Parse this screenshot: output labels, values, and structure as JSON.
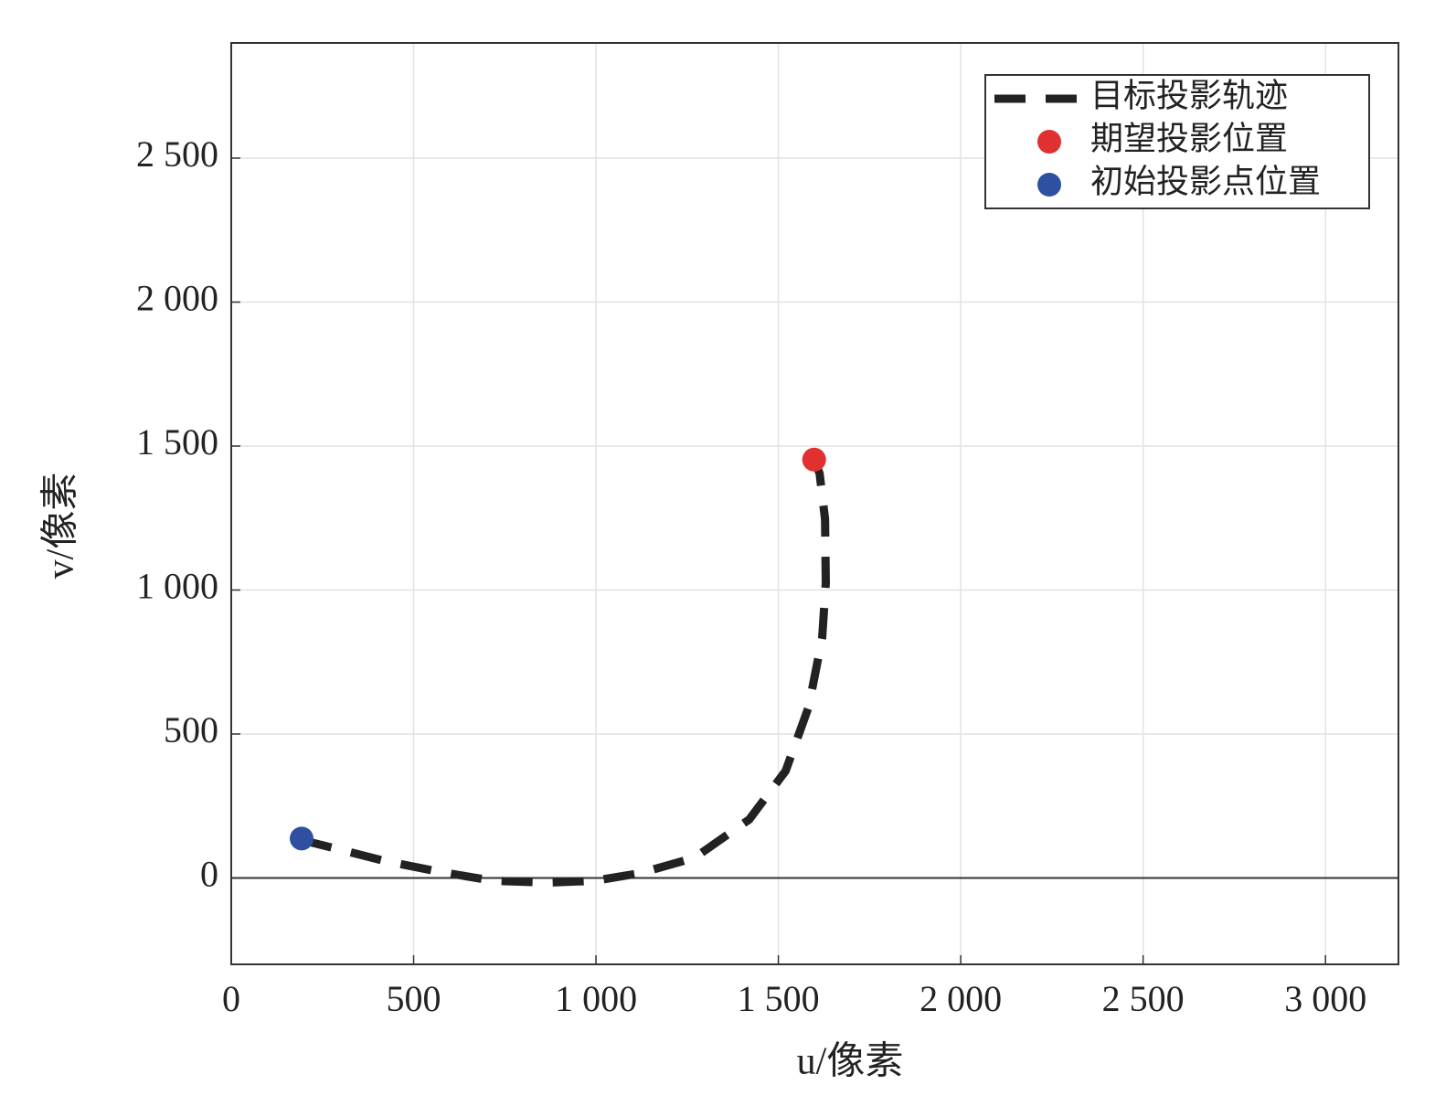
{
  "chart_data": {
    "type": "line",
    "xlabel": "u/像素",
    "ylabel": "v/像素",
    "xlim": [
      0,
      3200
    ],
    "ylim": [
      -300,
      2900
    ],
    "xticks": [
      0,
      500,
      {
        "value": 1000,
        "label": "1 000"
      },
      {
        "value": 1500,
        "label": "1 500"
      },
      {
        "value": 2000,
        "label": "2 000"
      },
      {
        "value": 2500,
        "label": "2 500"
      },
      {
        "value": 3000,
        "label": "3 000"
      }
    ],
    "yticks": [
      0,
      500,
      {
        "value": 1000,
        "label": "1 000"
      },
      {
        "value": 1500,
        "label": "1 500"
      },
      {
        "value": 2000,
        "label": "2 000"
      },
      {
        "value": 2500,
        "label": "2 500"
      }
    ],
    "grid": true,
    "zero_line": true,
    "legend": "upper right",
    "series": [
      {
        "name": "目标投影轨迹",
        "color": "#222222",
        "style": "dashed",
        "x": [
          193,
          218,
          418,
          569,
          719,
          869,
          994,
          1119,
          1270,
          1420,
          1520,
          1583,
          1620,
          1630,
          1628,
          1613,
          1598
        ],
        "values": [
          137,
          124,
          60,
          22,
          -10,
          -16,
          -10,
          16,
          70,
          203,
          372,
          594,
          833,
          1024,
          1246,
          1405,
          1453
        ]
      },
      {
        "name": "期望投影位置",
        "color": "#e03030",
        "type": "scatter",
        "x": [
          1598
        ],
        "values": [
          1453
        ]
      },
      {
        "name": "初始投影点位置",
        "color": "#2f4fa0",
        "type": "scatter",
        "x": [
          193
        ],
        "values": [
          137
        ]
      }
    ]
  }
}
